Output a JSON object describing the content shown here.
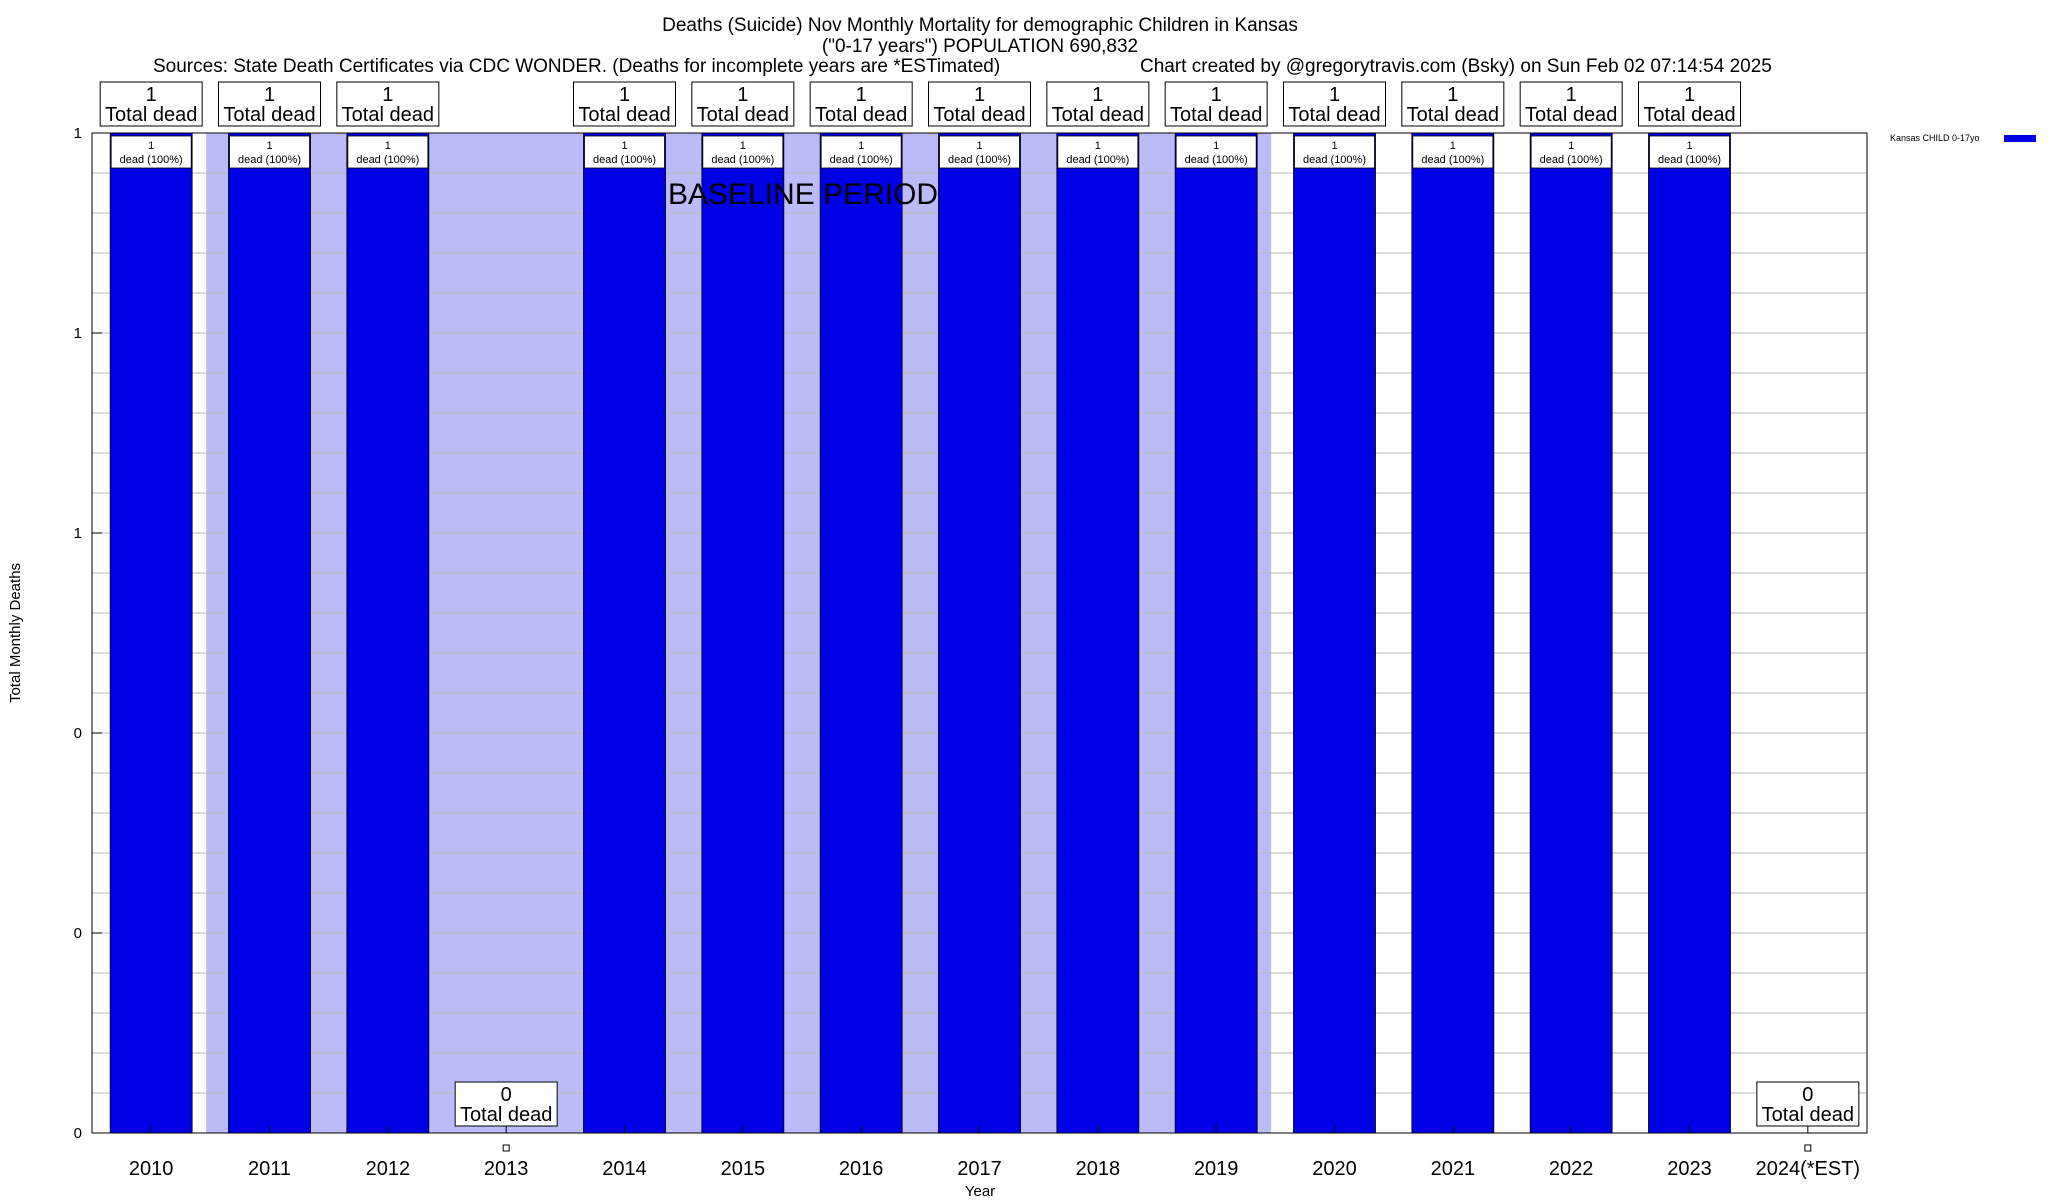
{
  "header": {
    "title_line1": "Deaths (Suicide) Nov Monthly Mortality for demographic Children in Kansas",
    "title_line2": "(\"0-17 years\") POPULATION 690,832",
    "sources": "Sources: State Death Certificates via CDC WONDER. (Deaths for incomplete years are *ESTimated)",
    "credit": "Chart created by @gregorytravis.com (Bsky) on Sun Feb 02 07:14:54 2025"
  },
  "annotation": "BASELINE PERIOD",
  "colors": {
    "bar": "#0000e6",
    "baseline_band": "#bbbbf8",
    "grid": "#bbbbbb"
  },
  "chart_data": {
    "type": "bar",
    "xlabel": "Year",
    "ylabel": "Total Monthly Deaths",
    "ylim": [
      0,
      1
    ],
    "y_tick_labels": [
      "0",
      "0",
      "0",
      "1",
      "1",
      "1"
    ],
    "categories": [
      "2010",
      "2011",
      "2012",
      "2013",
      "2014",
      "2015",
      "2016",
      "2017",
      "2018",
      "2019",
      "2020",
      "2021",
      "2022",
      "2023",
      "2024(*EST)"
    ],
    "series": [
      {
        "name": "Kansas CHILD 0-17yo",
        "values": [
          1,
          1,
          1,
          0,
          1,
          1,
          1,
          1,
          1,
          1,
          1,
          1,
          1,
          1,
          0
        ]
      }
    ],
    "top_labels": [
      {
        "value": "1",
        "text": "Total dead"
      },
      {
        "value": "1",
        "text": "Total dead"
      },
      {
        "value": "1",
        "text": "Total dead"
      },
      {
        "value": "0",
        "text": "Total dead"
      },
      {
        "value": "1",
        "text": "Total dead"
      },
      {
        "value": "1",
        "text": "Total dead"
      },
      {
        "value": "1",
        "text": "Total dead"
      },
      {
        "value": "1",
        "text": "Total dead"
      },
      {
        "value": "1",
        "text": "Total dead"
      },
      {
        "value": "1",
        "text": "Total dead"
      },
      {
        "value": "1",
        "text": "Total dead"
      },
      {
        "value": "1",
        "text": "Total dead"
      },
      {
        "value": "1",
        "text": "Total dead"
      },
      {
        "value": "1",
        "text": "Total dead"
      },
      {
        "value": "0",
        "text": "Total dead"
      }
    ],
    "inner_labels": [
      {
        "value": "1",
        "text": "dead (100%)"
      },
      {
        "value": "1",
        "text": "dead (100%)"
      },
      {
        "value": "1",
        "text": "dead (100%)"
      },
      null,
      {
        "value": "1",
        "text": "dead (100%)"
      },
      {
        "value": "1",
        "text": "dead (100%)"
      },
      {
        "value": "1",
        "text": "dead (100%)"
      },
      {
        "value": "1",
        "text": "dead (100%)"
      },
      {
        "value": "1",
        "text": "dead (100%)"
      },
      {
        "value": "1",
        "text": "dead (100%)"
      },
      {
        "value": "1",
        "text": "dead (100%)"
      },
      {
        "value": "1",
        "text": "dead (100%)"
      },
      {
        "value": "1",
        "text": "dead (100%)"
      },
      {
        "value": "1",
        "text": "dead (100%)"
      },
      null
    ],
    "baseline_period": [
      "2010",
      "2019"
    ],
    "legend_position": "top-right",
    "grid": true
  }
}
